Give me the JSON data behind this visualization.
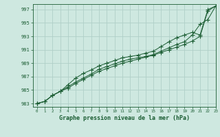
{
  "title": "Graphe pression niveau de la mer (hPa)",
  "bg_color": "#cee8e0",
  "grid_color": "#b0cfc8",
  "line_color": "#1a5c32",
  "xlim": [
    -0.5,
    23
  ],
  "ylim": [
    982.5,
    997.8
  ],
  "yticks": [
    983,
    985,
    987,
    989,
    991,
    993,
    995,
    997
  ],
  "xticks": [
    0,
    1,
    2,
    3,
    4,
    5,
    6,
    7,
    8,
    9,
    10,
    11,
    12,
    13,
    14,
    15,
    16,
    17,
    18,
    19,
    20,
    21,
    22,
    23
  ],
  "line1": [
    983.0,
    983.3,
    984.2,
    984.8,
    985.3,
    986.0,
    986.6,
    987.2,
    987.8,
    988.2,
    988.6,
    989.0,
    989.3,
    989.6,
    989.9,
    990.2,
    990.6,
    991.0,
    991.4,
    991.8,
    992.3,
    993.0,
    996.8,
    997.5
  ],
  "line2": [
    983.0,
    983.3,
    984.2,
    984.8,
    985.5,
    986.2,
    986.8,
    987.4,
    988.1,
    988.5,
    988.9,
    989.3,
    989.6,
    989.8,
    990.0,
    990.3,
    990.8,
    991.3,
    991.8,
    992.2,
    993.2,
    994.8,
    995.5,
    997.5
  ],
  "line3": [
    983.0,
    983.3,
    984.2,
    984.8,
    985.8,
    986.8,
    987.5,
    988.0,
    988.6,
    989.0,
    989.4,
    989.8,
    990.0,
    990.2,
    990.5,
    990.8,
    991.5,
    992.2,
    992.8,
    993.2,
    993.6,
    993.2,
    997.0,
    997.5
  ]
}
